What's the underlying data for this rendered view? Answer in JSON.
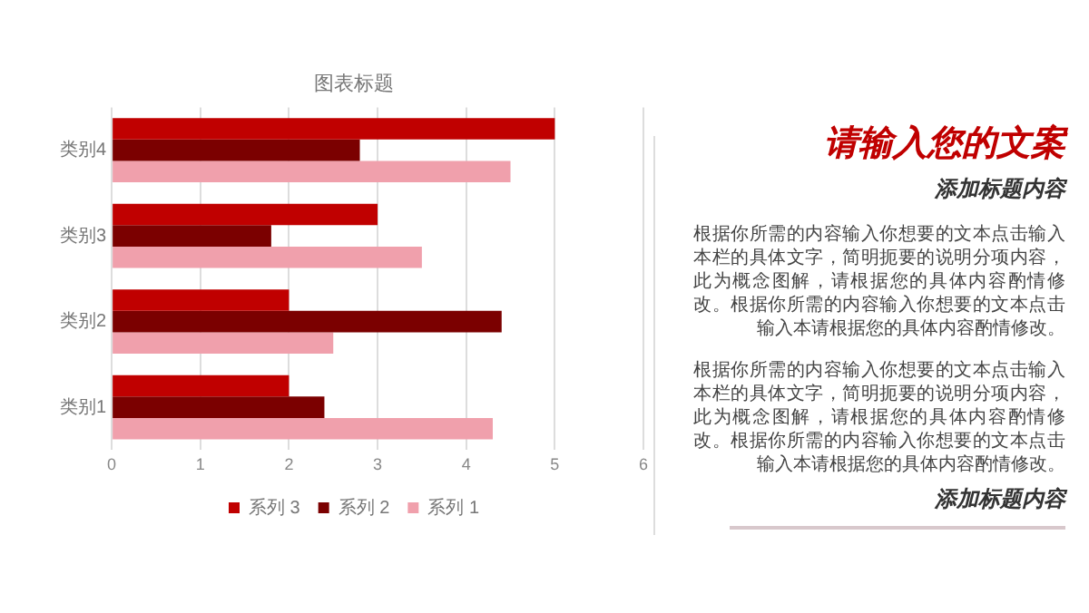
{
  "chart_data": [
    {
      "type": "bar",
      "title": "图表标题",
      "orientation": "horizontal",
      "categories": [
        "类别4",
        "类别3",
        "类别2",
        "类别1"
      ],
      "series": [
        {
          "name": "系列 3",
          "color": "#c00000",
          "values": [
            5,
            3,
            2,
            2
          ]
        },
        {
          "name": "系列 2",
          "color": "#7b0000",
          "values": [
            2.8,
            1.8,
            4.4,
            2.4
          ]
        },
        {
          "name": "系列 1",
          "color": "#f0a0ac",
          "values": [
            4.5,
            3.5,
            2.5,
            4.3
          ]
        }
      ],
      "xlim": [
        0,
        6
      ],
      "xticks": [
        0,
        1,
        2,
        3,
        4,
        5,
        6
      ],
      "grid": "x",
      "legend": "bottom"
    },
    {
      "type": "other",
      "title": "请输入您的文案",
      "subtitle": "添加标题内容",
      "annotations": [
        "根据你所需的内容输入你想要的文本点击输入本栏的具体文字，简明扼要的说明分项内容，此为概念图解，请根据您的具体内容酌情修改。根据你所需的内容输入你想要的文本点击输入本请根据您的具体内容酌情修改。",
        "根据你所需的内容输入你想要的文本点击输入本栏的具体文字，简明扼要的说明分项内容，此为概念图解，请根据您的具体内容酌情修改。根据你所需的内容输入你想要的文本点击输入本请根据您的具体内容酌情修改。",
        "添加标题内容"
      ]
    }
  ]
}
